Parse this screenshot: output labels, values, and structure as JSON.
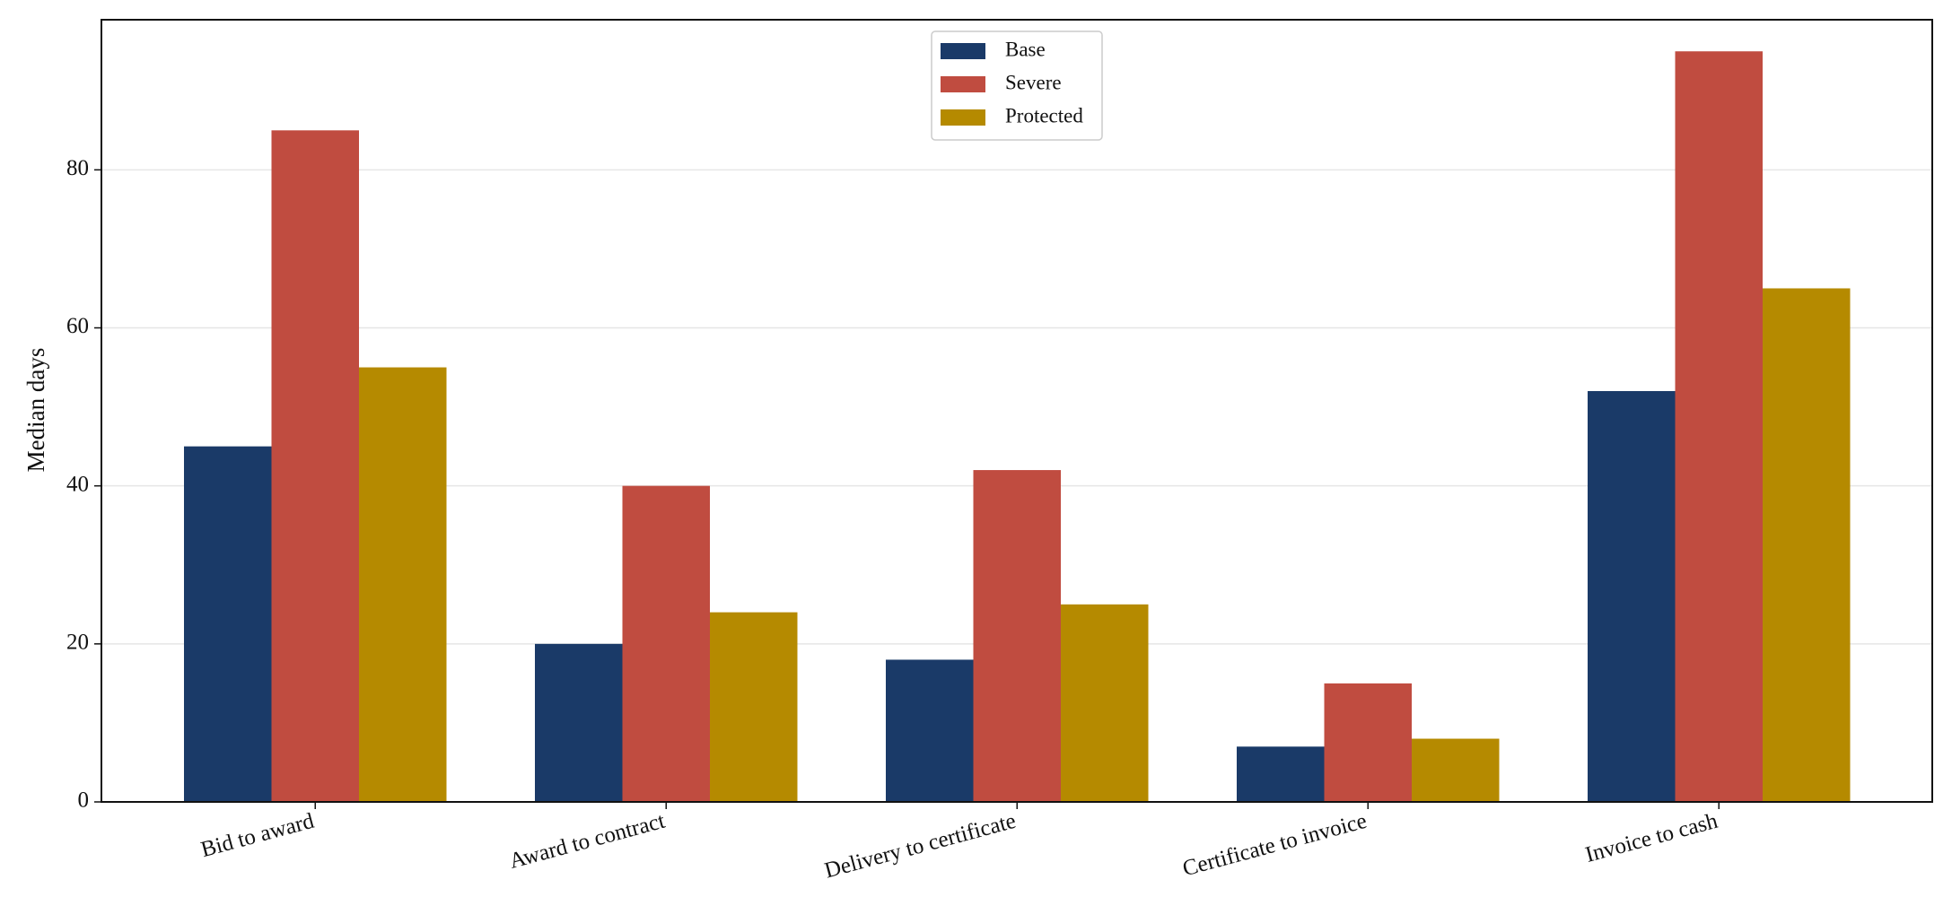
{
  "chart_data": {
    "type": "bar",
    "title": "",
    "xlabel": "",
    "ylabel": "Median days",
    "ylim": [
      0,
      99
    ],
    "yticks": [
      0,
      20,
      40,
      60,
      80
    ],
    "grid": "y",
    "legend_position": "top-center",
    "categories": [
      "Bid to award",
      "Award to contract",
      "Delivery to certificate",
      "Certificate to invoice",
      "Invoice to cash"
    ],
    "series": [
      {
        "name": "Base",
        "color": "#1a3a68",
        "values": [
          45,
          20,
          18,
          7,
          52
        ]
      },
      {
        "name": "Severe",
        "color": "#c04c40",
        "values": [
          85,
          40,
          42,
          15,
          95
        ]
      },
      {
        "name": "Protected",
        "color": "#b58a00",
        "values": [
          55,
          24,
          25,
          8,
          65
        ]
      }
    ]
  }
}
